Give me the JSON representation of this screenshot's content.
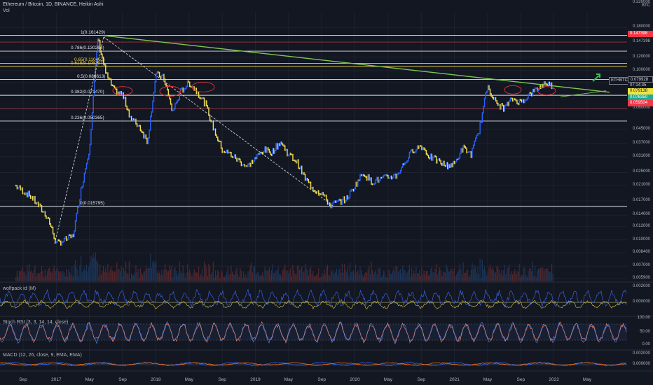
{
  "header": {
    "title": "Ethereum / Bitcoin, 1D, BINANCE, Heikin Ashi",
    "vol": "Vol"
  },
  "panes": {
    "wolfpack": "wolfpack id (M)",
    "stoch": "Stoch RSI (3, 3, 14, 14, close)",
    "macd": "MACD (12, 26, close, 9, EMA, EMA)"
  },
  "price_axis": {
    "top_label": "0.220000",
    "currency": "BTC",
    "ticks": [
      "0.180000",
      "0.147398",
      "0.120000",
      "0.100000",
      "0.085000",
      "0.060000",
      "0.045000",
      "0.037000",
      "0.031000",
      "0.025000",
      "0.021000",
      "0.017000",
      "0.014000",
      "0.012000",
      "0.010000",
      "0.008400",
      "0.007000",
      "0.005900"
    ],
    "wolfpack_ticks": [
      "0.002000",
      "0.000000"
    ],
    "stoch_ticks": [
      "100.00",
      "50.00",
      "0.00"
    ],
    "macd_ticks": [
      "0.002000",
      "0.000000"
    ]
  },
  "price_tags": {
    "red_top": "0.147398",
    "symbol": "ETHBTC",
    "last": "0.079928",
    "countdown": "07:14:35",
    "yellow": "0.079138",
    "green": "0.076350",
    "red": "0.059504"
  },
  "fib_levels": [
    {
      "label": "1(0.161429)",
      "value": 0.161429,
      "color": "#e0e3eb"
    },
    {
      "label": "0.786(0.130264)",
      "value": 0.130264,
      "color": "#e0e3eb"
    },
    {
      "label": "0.65(0.110452)",
      "value": 0.110452,
      "color": "#f0d443"
    },
    {
      "label": "0.618(0.105757)",
      "value": 0.105757,
      "color": "#f0d443"
    },
    {
      "label": "0.5(0.088613)",
      "value": 0.088613,
      "color": "#e0e3eb"
    },
    {
      "label": "0.382(0.071470)",
      "value": 0.07147,
      "color": "#e0e3eb"
    },
    {
      "label": "0.236(0.050365)",
      "value": 0.050365,
      "color": "#e0e3eb"
    },
    {
      "label": "0(0.015795)",
      "value": 0.015795,
      "color": "#e0e3eb"
    }
  ],
  "x_axis": {
    "labels": [
      "Sep",
      "2017",
      "May",
      "Sep",
      "2018",
      "May",
      "Sep",
      "2019",
      "May",
      "Sep",
      "2020",
      "May",
      "Sep",
      "2021",
      "May",
      "Sep",
      "2022",
      "May"
    ]
  },
  "colors": {
    "background": "#131722",
    "up_candle": "#2962ff",
    "down_candle": "#f5e04d",
    "trendline": "#7ec850",
    "fib_line": "#e0e3eb",
    "fib_gold": "#f0d443",
    "red_line": "#a0303a",
    "ellipse": "#e0333b"
  },
  "chart_data": {
    "type": "line",
    "title": "Ethereum / Bitcoin, 1D, BINANCE, Heikin Ashi",
    "log_scale": true,
    "x": [
      "2016-08",
      "2016-10",
      "2016-12",
      "2017-01",
      "2017-03",
      "2017-04",
      "2017-05",
      "2017-06",
      "2017-07",
      "2017-08",
      "2017-09",
      "2017-10",
      "2017-11",
      "2017-12",
      "2018-01",
      "2018-02",
      "2018-03",
      "2018-04",
      "2018-05",
      "2018-06",
      "2018-07",
      "2018-08",
      "2018-09",
      "2018-10",
      "2018-12",
      "2019-02",
      "2019-03",
      "2019-04",
      "2019-05",
      "2019-06",
      "2019-07",
      "2019-08",
      "2019-09",
      "2019-10",
      "2019-12",
      "2020-02",
      "2020-03",
      "2020-05",
      "2020-06",
      "2020-08",
      "2020-09",
      "2020-10",
      "2020-12",
      "2021-01",
      "2021-02",
      "2021-03",
      "2021-04",
      "2021-05",
      "2021-06",
      "2021-07",
      "2021-08",
      "2021-09",
      "2021-10",
      "2021-11",
      "2021-12",
      "2022-01"
    ],
    "series": [
      {
        "values": [
          0.021,
          0.018,
          0.0135,
          0.0095,
          0.0105,
          0.02,
          0.035,
          0.155,
          0.095,
          0.076,
          0.072,
          0.052,
          0.047,
          0.038,
          0.095,
          0.09,
          0.057,
          0.075,
          0.085,
          0.075,
          0.063,
          0.045,
          0.034,
          0.032,
          0.027,
          0.034,
          0.033,
          0.038,
          0.032,
          0.029,
          0.023,
          0.02,
          0.019,
          0.016,
          0.0175,
          0.025,
          0.022,
          0.0235,
          0.024,
          0.034,
          0.036,
          0.031,
          0.0275,
          0.028,
          0.035,
          0.032,
          0.045,
          0.082,
          0.064,
          0.06,
          0.068,
          0.065,
          0.072,
          0.078,
          0.085,
          0.08
        ]
      }
    ],
    "ylim": [
      0.0058,
      0.22
    ],
    "grid": true
  }
}
